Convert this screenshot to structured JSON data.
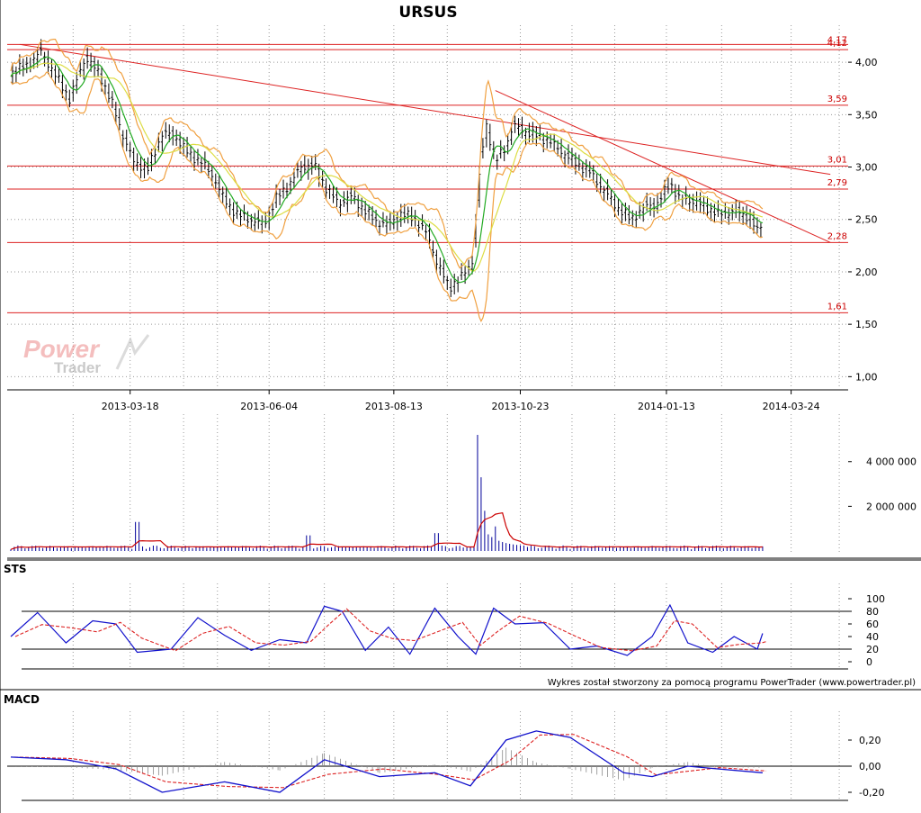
{
  "chart_data": [
    {
      "panel": "price",
      "type": "candlestick",
      "title": "URSUS",
      "ylim": [
        0.9,
        4.25
      ],
      "y_ticks": [
        "1,00",
        "1,50",
        "2,00",
        "2,50",
        "3,00",
        "3,50",
        "4,00"
      ],
      "x_ticks": [
        "2013-03-18",
        "2013-06-04",
        "2013-08-13",
        "2013-10-23",
        "2014-01-13",
        "2014-03-24"
      ],
      "x_range": [
        "2013-01-08",
        "2014-04-25"
      ],
      "support_resistance_levels": [
        {
          "value": 4.17,
          "label": "4,17"
        },
        {
          "value": 4.12,
          "label": "4,12"
        },
        {
          "value": 3.59,
          "label": "3,59"
        },
        {
          "value": 3.01,
          "label": "3,01"
        },
        {
          "value": 2.79,
          "label": "2,79"
        },
        {
          "value": 2.28,
          "label": "2,28"
        },
        {
          "value": 1.61,
          "label": "1,61"
        }
      ],
      "trend_lines": [
        {
          "from": [
            "2013-01-15",
            4.17
          ],
          "to": [
            "2014-04-15",
            2.93
          ]
        },
        {
          "from": [
            "2013-10-09",
            3.73
          ],
          "to": [
            "2014-04-15",
            2.28
          ]
        }
      ],
      "close_series": [
        [
          "2013-01-10",
          3.9
        ],
        [
          "2013-01-20",
          3.98
        ],
        [
          "2013-01-27",
          4.1
        ],
        [
          "2013-02-05",
          3.85
        ],
        [
          "2013-02-12",
          3.65
        ],
        [
          "2013-02-21",
          4.05
        ],
        [
          "2013-03-01",
          3.88
        ],
        [
          "2013-03-08",
          3.6
        ],
        [
          "2013-03-14",
          3.3
        ],
        [
          "2013-03-20",
          3.05
        ],
        [
          "2013-03-28",
          2.98
        ],
        [
          "2013-04-05",
          3.32
        ],
        [
          "2013-04-12",
          3.3
        ],
        [
          "2013-04-20",
          3.12
        ],
        [
          "2013-04-27",
          3.05
        ],
        [
          "2013-05-04",
          2.9
        ],
        [
          "2013-05-10",
          2.68
        ],
        [
          "2013-05-17",
          2.55
        ],
        [
          "2013-05-24",
          2.5
        ],
        [
          "2013-06-01",
          2.45
        ],
        [
          "2013-06-08",
          2.7
        ],
        [
          "2013-06-16",
          2.85
        ],
        [
          "2013-06-22",
          3.0
        ],
        [
          "2013-06-29",
          3.02
        ],
        [
          "2013-07-06",
          2.8
        ],
        [
          "2013-07-13",
          2.65
        ],
        [
          "2013-07-20",
          2.72
        ],
        [
          "2013-07-27",
          2.6
        ],
        [
          "2013-08-03",
          2.48
        ],
        [
          "2013-08-10",
          2.45
        ],
        [
          "2013-08-17",
          2.55
        ],
        [
          "2013-08-24",
          2.52
        ],
        [
          "2013-09-01",
          2.35
        ],
        [
          "2013-09-06",
          2.1
        ],
        [
          "2013-09-13",
          1.85
        ],
        [
          "2013-09-20",
          1.95
        ],
        [
          "2013-09-26",
          2.1
        ],
        [
          "2013-10-01",
          3.1
        ],
        [
          "2013-10-04",
          3.4
        ],
        [
          "2013-10-09",
          3.05
        ],
        [
          "2013-10-15",
          3.2
        ],
        [
          "2013-10-19",
          3.4
        ],
        [
          "2013-10-24",
          3.35
        ],
        [
          "2013-11-01",
          3.3
        ],
        [
          "2013-11-08",
          3.25
        ],
        [
          "2013-11-15",
          3.15
        ],
        [
          "2013-11-22",
          3.05
        ],
        [
          "2013-12-01",
          2.95
        ],
        [
          "2013-12-08",
          2.8
        ],
        [
          "2013-12-16",
          2.62
        ],
        [
          "2013-12-24",
          2.5
        ],
        [
          "2014-01-01",
          2.62
        ],
        [
          "2014-01-08",
          2.65
        ],
        [
          "2014-01-15",
          2.85
        ],
        [
          "2014-01-20",
          2.7
        ],
        [
          "2014-01-27",
          2.68
        ],
        [
          "2014-02-04",
          2.62
        ],
        [
          "2014-02-11",
          2.55
        ],
        [
          "2014-02-20",
          2.58
        ],
        [
          "2014-03-01",
          2.52
        ],
        [
          "2014-03-05",
          2.38
        ],
        [
          "2014-03-08",
          2.5
        ]
      ]
    },
    {
      "panel": "volume",
      "type": "bar",
      "ylim": [
        0,
        5400000
      ],
      "y_ticks": [
        "2 000 000",
        "4 000 000"
      ],
      "peaks": [
        [
          "2013-03-22",
          1300000
        ],
        [
          "2013-06-26",
          700000
        ],
        [
          "2013-09-06",
          800000
        ],
        [
          "2013-09-30",
          5200000
        ],
        [
          "2013-10-01",
          3300000
        ],
        [
          "2013-10-03",
          1800000
        ],
        [
          "2013-10-09",
          1100000
        ]
      ]
    },
    {
      "panel": "oscillator",
      "type": "line",
      "label": "STS",
      "ylim": [
        0,
        100
      ],
      "y_ticks": [
        "0",
        "20",
        "40",
        "60",
        "80",
        "100"
      ],
      "reference_levels": [
        20,
        80
      ],
      "series": [
        {
          "values": [
            [
              "2013-01-10",
              40
            ],
            [
              "2013-01-25",
              78
            ],
            [
              "2013-02-10",
              30
            ],
            [
              "2013-02-25",
              65
            ],
            [
              "2013-03-10",
              60
            ],
            [
              "2013-03-22",
              15
            ],
            [
              "2013-04-10",
              20
            ],
            [
              "2013-04-25",
              70
            ],
            [
              "2013-05-10",
              42
            ],
            [
              "2013-05-25",
              18
            ],
            [
              "2013-06-10",
              35
            ],
            [
              "2013-06-25",
              30
            ],
            [
              "2013-07-05",
              88
            ],
            [
              "2013-07-15",
              80
            ],
            [
              "2013-07-28",
              18
            ],
            [
              "2013-08-10",
              55
            ],
            [
              "2013-08-22",
              12
            ],
            [
              "2013-09-05",
              85
            ],
            [
              "2013-09-18",
              40
            ],
            [
              "2013-09-28",
              12
            ],
            [
              "2013-10-08",
              85
            ],
            [
              "2013-10-20",
              60
            ],
            [
              "2013-11-05",
              62
            ],
            [
              "2013-11-20",
              20
            ],
            [
              "2013-12-05",
              25
            ],
            [
              "2013-12-22",
              10
            ],
            [
              "2014-01-05",
              40
            ],
            [
              "2014-01-15",
              90
            ],
            [
              "2014-01-25",
              30
            ],
            [
              "2014-02-08",
              15
            ],
            [
              "2014-02-20",
              40
            ],
            [
              "2014-03-05",
              20
            ],
            [
              "2014-03-08",
              45
            ]
          ]
        }
      ]
    },
    {
      "panel": "oscillator",
      "type": "line",
      "label": "MACD",
      "ylim": [
        -0.24,
        0.3
      ],
      "y_ticks": [
        "0,20",
        "0,00",
        "-0,20"
      ],
      "series": [
        {
          "values": [
            [
              "2013-01-10",
              0.07
            ],
            [
              "2013-02-10",
              0.05
            ],
            [
              "2013-03-10",
              -0.02
            ],
            [
              "2013-04-05",
              -0.2
            ],
            [
              "2013-05-10",
              -0.12
            ],
            [
              "2013-06-10",
              -0.2
            ],
            [
              "2013-07-05",
              0.05
            ],
            [
              "2013-08-05",
              -0.08
            ],
            [
              "2013-09-05",
              -0.05
            ],
            [
              "2013-09-25",
              -0.15
            ],
            [
              "2013-10-15",
              0.2
            ],
            [
              "2013-11-01",
              0.27
            ],
            [
              "2013-11-20",
              0.22
            ],
            [
              "2013-12-20",
              -0.05
            ],
            [
              "2014-01-05",
              -0.08
            ],
            [
              "2014-01-25",
              0.0
            ],
            [
              "2014-02-10",
              -0.02
            ],
            [
              "2014-03-08",
              -0.05
            ]
          ]
        }
      ]
    }
  ],
  "credit": "Wykres został stworzony za pomocą programu PowerTrader (www.powertrader.pl)",
  "watermark": "PowerTrader",
  "colors": {
    "candle": "#000000",
    "bollinger": "#f0a040",
    "ma_short": "#22aa22",
    "ma_long": "#dddd44",
    "levels": "#dd2222",
    "volume_bars": "#000099",
    "volume_avg": "#cc0000",
    "sts_k": "#1111cc",
    "sts_d": "#dd2222"
  }
}
